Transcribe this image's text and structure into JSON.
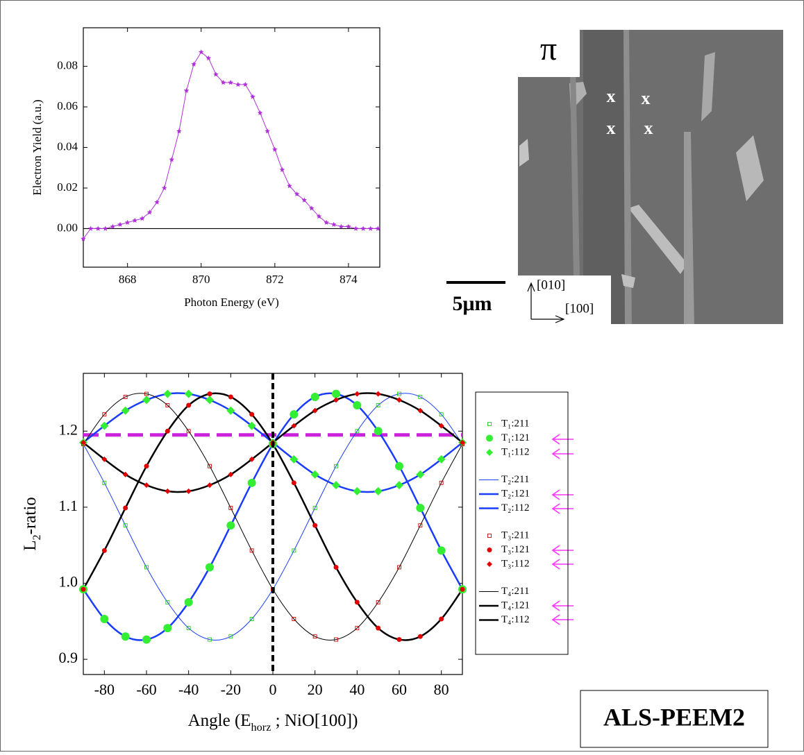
{
  "chart_data": [
    {
      "type": "line",
      "xlabel": [
        "Photon Energy (eV)"
      ],
      "ylabel": [
        "Electron Yield (a.u.)"
      ],
      "x": [
        866.8,
        867,
        867.2,
        867.4,
        867.6,
        867.8,
        868,
        868.2,
        868.4,
        868.6,
        868.8,
        869,
        869.2,
        869.4,
        869.6,
        869.8,
        870,
        870.2,
        870.4,
        870.6,
        870.8,
        871,
        871.2,
        871.4,
        871.6,
        871.8,
        872,
        872.2,
        872.4,
        872.6,
        872.8,
        873,
        873.2,
        873.4,
        873.6,
        873.8,
        874,
        874.2,
        874.4,
        874.6,
        874.8
      ],
      "series": [
        {
          "color": "#b030d8",
          "marker": "star",
          "marker_size": 4,
          "linewidth": 1,
          "values": [
            -0.005,
            0,
            0,
            0,
            0.001,
            0.002,
            0.003,
            0.004,
            0.005,
            0.008,
            0.013,
            0.02,
            0.034,
            0.048,
            0.068,
            0.081,
            0.087,
            0.084,
            0.076,
            0.072,
            0.072,
            0.071,
            0.071,
            0.065,
            0.057,
            0.048,
            0.039,
            0.029,
            0.021,
            0.017,
            0.014,
            0.01,
            0.006,
            0.003,
            0.002,
            0.001,
            0.001,
            0,
            0,
            0,
            0
          ]
        }
      ],
      "xlim": [
        866.8,
        874.85
      ],
      "xticks": [
        868,
        870,
        872,
        874
      ],
      "ylim": [
        -0.019,
        0.099
      ],
      "yticks": [
        {
          "value": 0,
          "label": "0.00"
        },
        0.02,
        0.04,
        0.06,
        0.08
      ],
      "hline": {
        "value": 0,
        "color": "#000000",
        "dashed": false
      }
    },
    {
      "type": "line",
      "smooth": true,
      "xlabel": [
        "Angle (E",
        "horz",
        " ; NiO[100])"
      ],
      "ylabel": [
        "L",
        "2",
        "-ratio"
      ],
      "x": [
        -90,
        -80,
        -70,
        -60,
        -50,
        -40,
        -30,
        -20,
        -10,
        0,
        10,
        20,
        30,
        40,
        50,
        60,
        70,
        80,
        90
      ],
      "series": [
        {
          "name": "T₁:211",
          "color": "#22cc22",
          "marker": "square",
          "marker_size": 2.5,
          "linewidth": 0,
          "values": [
            1.183,
            1.132,
            1.076,
            1.021,
            0.975,
            0.941,
            0.926,
            0.93,
            0.953,
            0.992,
            1.043,
            1.099,
            1.154,
            1.2,
            1.234,
            1.249,
            1.245,
            1.222,
            1.183
          ]
        },
        {
          "name": "T₁:121",
          "color": "#33ee33",
          "marker": "circle",
          "marker_size": 6,
          "linewidth": 0,
          "values": [
            0.992,
            0.953,
            0.93,
            0.926,
            0.941,
            0.975,
            1.021,
            1.076,
            1.132,
            1.183,
            1.222,
            1.245,
            1.249,
            1.234,
            1.2,
            1.154,
            1.099,
            1.043,
            0.992
          ]
        },
        {
          "name": "T₁:112",
          "color": "#33ee33",
          "marker": "diamond",
          "marker_size": 6,
          "linewidth": 0,
          "values": [
            1.185,
            1.207,
            1.227,
            1.241,
            1.249,
            1.249,
            1.241,
            1.227,
            1.207,
            1.185,
            1.163,
            1.143,
            1.129,
            1.121,
            1.121,
            1.129,
            1.143,
            1.163,
            1.185
          ]
        },
        {
          "name": "T₂:211",
          "color": "#1a3cff",
          "marker": null,
          "linewidth": 1,
          "values": [
            1.183,
            1.132,
            1.076,
            1.021,
            0.975,
            0.941,
            0.926,
            0.93,
            0.953,
            0.992,
            1.043,
            1.099,
            1.154,
            1.2,
            1.234,
            1.249,
            1.245,
            1.222,
            1.183
          ]
        },
        {
          "name": "T₂:121",
          "color": "#1a3cff",
          "marker": null,
          "linewidth": 2.5,
          "values": [
            0.992,
            0.953,
            0.93,
            0.926,
            0.941,
            0.975,
            1.021,
            1.076,
            1.132,
            1.183,
            1.222,
            1.245,
            1.249,
            1.234,
            1.2,
            1.154,
            1.099,
            1.043,
            0.992
          ]
        },
        {
          "name": "T₂:112",
          "color": "#1a3cff",
          "marker": null,
          "linewidth": 2.5,
          "values": [
            1.185,
            1.207,
            1.227,
            1.241,
            1.249,
            1.249,
            1.241,
            1.227,
            1.207,
            1.185,
            1.163,
            1.143,
            1.129,
            1.121,
            1.121,
            1.129,
            1.143,
            1.163,
            1.185
          ]
        },
        {
          "name": "T₃:211",
          "color": "#cc0000",
          "marker": "square",
          "marker_size": 2.5,
          "linewidth": 0,
          "values": [
            1.183,
            1.222,
            1.245,
            1.249,
            1.234,
            1.2,
            1.154,
            1.099,
            1.043,
            0.992,
            0.953,
            0.93,
            0.926,
            0.941,
            0.975,
            1.021,
            1.076,
            1.132,
            1.183
          ]
        },
        {
          "name": "T₃:121",
          "color": "#e00000",
          "marker": "circle",
          "marker_size": 3.5,
          "linewidth": 0,
          "values": [
            0.992,
            1.043,
            1.099,
            1.154,
            1.2,
            1.234,
            1.249,
            1.245,
            1.222,
            1.183,
            1.132,
            1.076,
            1.021,
            0.975,
            0.941,
            0.926,
            0.93,
            0.953,
            0.992
          ]
        },
        {
          "name": "T₃:112",
          "color": "#e00000",
          "marker": "diamond",
          "marker_size": 4,
          "linewidth": 0,
          "values": [
            1.185,
            1.163,
            1.143,
            1.129,
            1.121,
            1.121,
            1.129,
            1.143,
            1.163,
            1.185,
            1.207,
            1.227,
            1.241,
            1.249,
            1.249,
            1.241,
            1.227,
            1.207,
            1.185
          ]
        },
        {
          "name": "T₄:211",
          "color": "#000000",
          "marker": null,
          "linewidth": 1,
          "values": [
            1.183,
            1.222,
            1.245,
            1.249,
            1.234,
            1.2,
            1.154,
            1.099,
            1.043,
            0.992,
            0.953,
            0.93,
            0.926,
            0.941,
            0.975,
            1.021,
            1.076,
            1.132,
            1.183
          ]
        },
        {
          "name": "T₄:121",
          "color": "#000000",
          "marker": null,
          "linewidth": 2.5,
          "values": [
            0.992,
            1.043,
            1.099,
            1.154,
            1.2,
            1.234,
            1.249,
            1.245,
            1.222,
            1.183,
            1.132,
            1.076,
            1.021,
            0.975,
            0.941,
            0.926,
            0.93,
            0.953,
            0.992
          ]
        },
        {
          "name": "T₄:112",
          "color": "#000000",
          "marker": null,
          "linewidth": 2.5,
          "values": [
            1.185,
            1.163,
            1.143,
            1.129,
            1.121,
            1.121,
            1.129,
            1.143,
            1.163,
            1.185,
            1.207,
            1.227,
            1.241,
            1.249,
            1.249,
            1.241,
            1.227,
            1.207,
            1.185
          ]
        }
      ],
      "xlim": [
        -90,
        90
      ],
      "xticks": [
        -80,
        -60,
        -40,
        -20,
        0,
        20,
        40,
        60,
        80
      ],
      "ylim": [
        0.88,
        1.276
      ],
      "yticks": [
        0.9,
        {
          "value": 1.0,
          "label": "1.0"
        },
        1.1,
        1.2
      ],
      "hline": {
        "value": 1.195,
        "color": "#cc22dd",
        "dashed": true
      },
      "vline": {
        "value": 0,
        "color": "#000000",
        "dashed": true
      },
      "legend": "right"
    }
  ],
  "image": {
    "polarization": "π",
    "marks": [
      "x",
      "x",
      "x",
      "x"
    ],
    "scale_bar": "5μm",
    "axes": [
      "[010]",
      "[100]"
    ]
  },
  "footer": "ALS-PEEM2"
}
